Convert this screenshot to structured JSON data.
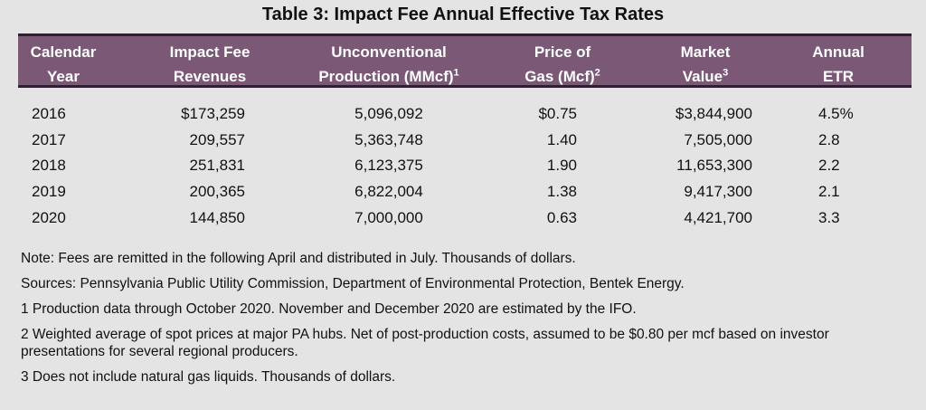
{
  "title": "Table 3: Impact Fee Annual Effective Tax Rates",
  "headers": [
    {
      "line1": "Calendar",
      "line2": "Year",
      "sup": ""
    },
    {
      "line1": "Impact Fee",
      "line2": "Revenues",
      "sup": ""
    },
    {
      "line1": "Unconventional",
      "line2": "Production (MMcf)",
      "sup": "1"
    },
    {
      "line1": "Price of",
      "line2": "Gas (Mcf)",
      "sup": "2"
    },
    {
      "line1": "Market",
      "line2": "Value",
      "sup": "3"
    },
    {
      "line1": "Annual",
      "line2": "ETR",
      "sup": ""
    }
  ],
  "rows": [
    [
      "2016",
      "$173,259",
      "5,096,092",
      "$0.75",
      "$3,844,900",
      "4.5%"
    ],
    [
      "2017",
      "209,557",
      "5,363,748",
      "1.40",
      "7,505,000",
      "2.8"
    ],
    [
      "2018",
      "251,831",
      "6,123,375",
      "1.90",
      "11,653,300",
      "2.2"
    ],
    [
      "2019",
      "200,365",
      "6,822,004",
      "1.38",
      "9,417,300",
      "2.1"
    ],
    [
      "2020",
      "144,850",
      "7,000,000",
      "0.63",
      "4,421,700",
      "3.3"
    ]
  ],
  "notes": [
    "Note: Fees are remitted in the following April and distributed in July. Thousands of dollars.",
    "Sources: Pennsylvania Public Utility Commission, Department of Environmental Protection, Bentek Energy.",
    "1 Production data through October 2020. November and December 2020 are estimated by the IFO.",
    "2 Weighted average of spot prices at major PA hubs. Net of post-production costs, assumed to be $0.80 per mcf based on investor presentations for several regional producers.",
    "3 Does not include natural gas liquids. Thousands of dollars."
  ],
  "colors": {
    "header_bg": "#7b5876",
    "header_text": "#ffffff",
    "background": "#e4e4e4"
  }
}
